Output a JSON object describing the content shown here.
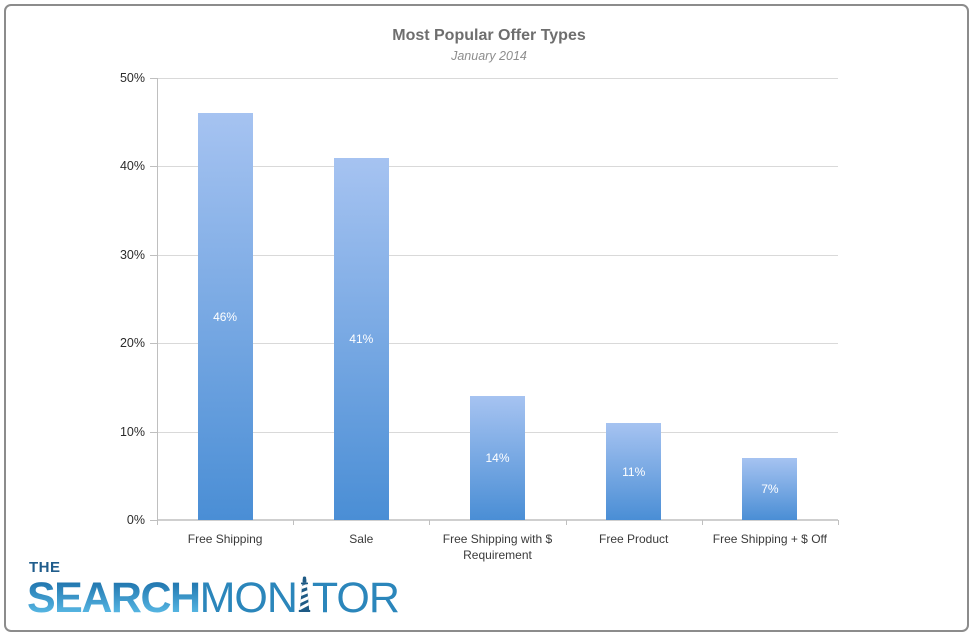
{
  "chart_data": {
    "type": "bar",
    "title": "Most Popular Offer Types",
    "subtitle": "January 2014",
    "categories": [
      "Free Shipping",
      "Sale",
      "Free Shipping with $ Requirement",
      "Free Product",
      "Free Shipping + $ Off"
    ],
    "values": [
      46,
      41,
      14,
      11,
      7
    ],
    "value_labels": [
      "46%",
      "41%",
      "14%",
      "11%",
      "7%"
    ],
    "ylim": [
      0,
      50
    ],
    "yticks": [
      {
        "value": 50,
        "label": "50%"
      },
      {
        "value": 40,
        "label": "40%"
      },
      {
        "value": 30,
        "label": "30%"
      },
      {
        "value": 20,
        "label": "20%"
      },
      {
        "value": 10,
        "label": "10%"
      },
      {
        "value": 0,
        "label": "0%"
      }
    ],
    "grid": true,
    "legend": false,
    "colors": {
      "bar_top": "#a6c3f1",
      "bar_bottom": "#4a8ed5",
      "grid": "#d9d9d9",
      "baseline": "#cfcfcf",
      "axis": "#bfbfbf",
      "title": "#6e6e6e",
      "subtitle": "#8d8d8d",
      "tick_label": "#2b2b2b",
      "category_label": "#3a3a3a",
      "value_label": "#ffffff"
    }
  },
  "logo": {
    "the": "THE",
    "search": "SEARCH",
    "monitor_prefix": "MON",
    "monitor_suffix": "TOR",
    "colors": {
      "the_color": "#205d8c",
      "search_top": "#1b6fa9",
      "search_bottom": "#62c4ee",
      "monitor_color": "#2b86bb",
      "lighthouse_color": "#1e5a85"
    }
  }
}
